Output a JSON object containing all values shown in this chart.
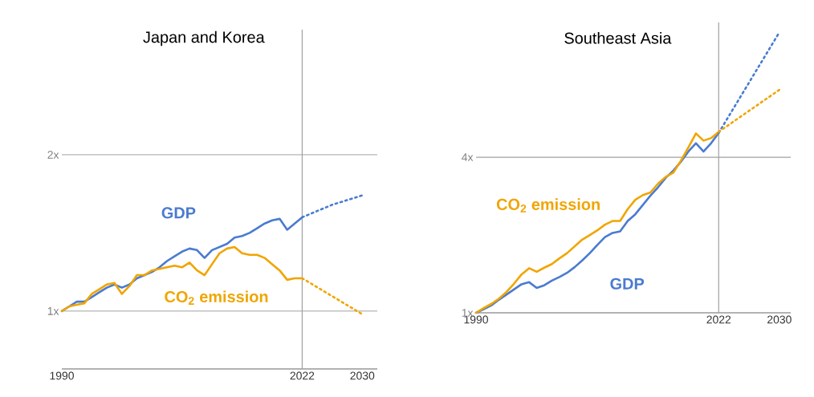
{
  "chart_data": [
    {
      "type": "line",
      "title": "Japan and Korea",
      "xlim": [
        1990,
        2032
      ],
      "ylim": [
        0.63,
        2.8
      ],
      "xticks": [
        1990,
        2022,
        2030
      ],
      "yticks": [
        {
          "value": 1,
          "label": "1x"
        },
        {
          "value": 2,
          "label": "2x"
        }
      ],
      "grid": "y",
      "line_style": "solid",
      "ref_lines": [
        {
          "axis": "x",
          "value": 2022,
          "color": "#a0a0a0"
        }
      ],
      "series": [
        {
          "name": "GDP",
          "color": "#4a7bd0",
          "x": [
            1990,
            1991,
            1992,
            1993,
            1994,
            1995,
            1996,
            1997,
            1998,
            1999,
            2000,
            2001,
            2002,
            2003,
            2004,
            2005,
            2006,
            2007,
            2008,
            2009,
            2010,
            2011,
            2012,
            2013,
            2014,
            2015,
            2016,
            2017,
            2018,
            2019,
            2020,
            2021,
            2022
          ],
          "values": [
            1.0,
            1.03,
            1.06,
            1.06,
            1.09,
            1.12,
            1.15,
            1.17,
            1.15,
            1.17,
            1.21,
            1.23,
            1.25,
            1.28,
            1.32,
            1.35,
            1.38,
            1.4,
            1.39,
            1.34,
            1.39,
            1.41,
            1.43,
            1.47,
            1.48,
            1.5,
            1.53,
            1.56,
            1.58,
            1.59,
            1.52,
            1.56,
            1.6
          ]
        },
        {
          "name": "CO$_{2}$ emission",
          "color": "#f0a500",
          "x": [
            1990,
            1991,
            1992,
            1993,
            1994,
            1995,
            1996,
            1997,
            1998,
            1999,
            2000,
            2001,
            2002,
            2003,
            2004,
            2005,
            2006,
            2007,
            2008,
            2009,
            2010,
            2011,
            2012,
            2013,
            2014,
            2015,
            2016,
            2017,
            2018,
            2019,
            2020,
            2021,
            2022
          ],
          "values": [
            1.0,
            1.03,
            1.04,
            1.05,
            1.11,
            1.14,
            1.17,
            1.18,
            1.11,
            1.16,
            1.23,
            1.23,
            1.26,
            1.27,
            1.28,
            1.29,
            1.28,
            1.31,
            1.26,
            1.23,
            1.3,
            1.37,
            1.4,
            1.41,
            1.37,
            1.36,
            1.36,
            1.34,
            1.3,
            1.26,
            1.2,
            1.21,
            1.21
          ]
        },
        {
          "color": "#4a7bd0",
          "line_style": "dotted",
          "x": [
            2022,
            2026,
            2030
          ],
          "values": [
            1.6,
            1.68,
            1.74
          ]
        },
        {
          "color": "#f0a500",
          "line_style": "dotted",
          "x": [
            2022,
            2030
          ],
          "values": [
            1.21,
            0.98
          ]
        }
      ]
    },
    {
      "type": "line",
      "title": "Southeast Asia",
      "xlim": [
        1990,
        2031.5
      ],
      "ylim": [
        1,
        6.6
      ],
      "xticks": [
        1990,
        2022,
        2030
      ],
      "yticks": [
        {
          "value": 1,
          "label": "1x"
        },
        {
          "value": 4,
          "label": "4x"
        }
      ],
      "line_style": "solid",
      "ref_lines": [
        {
          "axis": "x",
          "value": 2022,
          "color": "#a0a0a0"
        },
        {
          "axis": "y",
          "value": 4,
          "color": "#a0a0a0"
        }
      ],
      "series": [
        {
          "name": "GDP",
          "color": "#4a7bd0",
          "x": [
            1990,
            1991,
            1992,
            1993,
            1994,
            1995,
            1996,
            1997,
            1998,
            1999,
            2000,
            2001,
            2002,
            2003,
            2004,
            2005,
            2006,
            2007,
            2008,
            2009,
            2010,
            2011,
            2012,
            2013,
            2014,
            2015,
            2016,
            2017,
            2018,
            2019,
            2020,
            2021,
            2022
          ],
          "values": [
            1.0,
            1.07,
            1.14,
            1.25,
            1.35,
            1.45,
            1.55,
            1.59,
            1.48,
            1.53,
            1.62,
            1.69,
            1.77,
            1.88,
            2.01,
            2.15,
            2.31,
            2.46,
            2.54,
            2.57,
            2.77,
            2.9,
            3.08,
            3.26,
            3.42,
            3.6,
            3.74,
            3.91,
            4.11,
            4.27,
            4.11,
            4.27,
            4.47
          ]
        },
        {
          "name": "CO$_{2}$ emission",
          "color": "#f0a500",
          "x": [
            1990,
            1991,
            1992,
            1993,
            1994,
            1995,
            1996,
            1997,
            1998,
            1999,
            2000,
            2001,
            2002,
            2003,
            2004,
            2005,
            2006,
            2007,
            2008,
            2009,
            2010,
            2011,
            2012,
            2013,
            2014,
            2015,
            2016,
            2017,
            2018,
            2019,
            2020,
            2021,
            2022
          ],
          "values": [
            1.0,
            1.09,
            1.17,
            1.27,
            1.4,
            1.56,
            1.74,
            1.86,
            1.79,
            1.87,
            1.94,
            2.05,
            2.15,
            2.28,
            2.41,
            2.5,
            2.59,
            2.7,
            2.77,
            2.77,
            3.0,
            3.18,
            3.27,
            3.32,
            3.49,
            3.62,
            3.7,
            3.93,
            4.19,
            4.46,
            4.32,
            4.37,
            4.49
          ]
        },
        {
          "color": "#4a7bd0",
          "line_style": "dotted",
          "x": [
            2022,
            2030
          ],
          "values": [
            4.47,
            6.41
          ]
        },
        {
          "color": "#f0a500",
          "line_style": "dotted",
          "x": [
            2022,
            2030
          ],
          "values": [
            4.49,
            5.3
          ]
        }
      ]
    }
  ]
}
